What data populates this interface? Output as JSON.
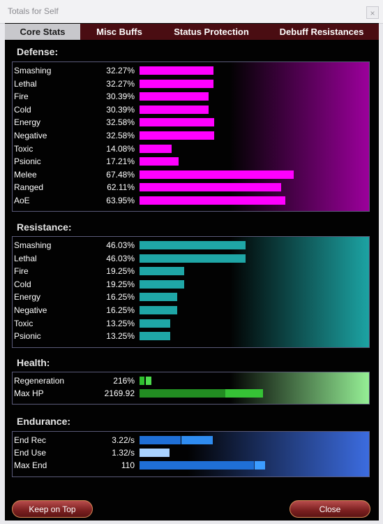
{
  "window": {
    "title": "Totals for Self",
    "close_glyph": "×"
  },
  "tabs": [
    {
      "label": "Core Stats",
      "active": true
    },
    {
      "label": "Misc Buffs",
      "active": false
    },
    {
      "label": "Status Protection",
      "active": false
    },
    {
      "label": "Debuff Resistances",
      "active": false
    }
  ],
  "defense": {
    "title": "Defense:",
    "color": "#ff00ff",
    "rows": [
      {
        "label": "Smashing",
        "value": "32.27%"
      },
      {
        "label": "Lethal",
        "value": "32.27%"
      },
      {
        "label": "Fire",
        "value": "30.39%"
      },
      {
        "label": "Cold",
        "value": "30.39%"
      },
      {
        "label": "Energy",
        "value": "32.58%"
      },
      {
        "label": "Negative",
        "value": "32.58%"
      },
      {
        "label": "Toxic",
        "value": "14.08%"
      },
      {
        "label": "Psionic",
        "value": "17.21%"
      },
      {
        "label": "Melee",
        "value": "67.48%"
      },
      {
        "label": "Ranged",
        "value": "62.11%"
      },
      {
        "label": "AoE",
        "value": "63.95%"
      }
    ]
  },
  "resistance": {
    "title": "Resistance:",
    "color": "#1fa6a6",
    "rows": [
      {
        "label": "Smashing",
        "value": "46.03%"
      },
      {
        "label": "Lethal",
        "value": "46.03%"
      },
      {
        "label": "Fire",
        "value": "19.25%"
      },
      {
        "label": "Cold",
        "value": "19.25%"
      },
      {
        "label": "Energy",
        "value": "16.25%"
      },
      {
        "label": "Negative",
        "value": "16.25%"
      },
      {
        "label": "Toxic",
        "value": "13.25%"
      },
      {
        "label": "Psionic",
        "value": "13.25%"
      }
    ]
  },
  "health": {
    "title": "Health:",
    "rows": [
      {
        "label": "Regeneration",
        "value": "216%"
      },
      {
        "label": "Max HP",
        "value": "2169.92"
      }
    ]
  },
  "endurance": {
    "title": "Endurance:",
    "rows": [
      {
        "label": "End Rec",
        "value": "3.22/s"
      },
      {
        "label": "End Use",
        "value": "1.32/s"
      },
      {
        "label": "Max End",
        "value": "110"
      }
    ]
  },
  "buttons": {
    "keep_on_top": "Keep on Top",
    "close": "Close"
  }
}
